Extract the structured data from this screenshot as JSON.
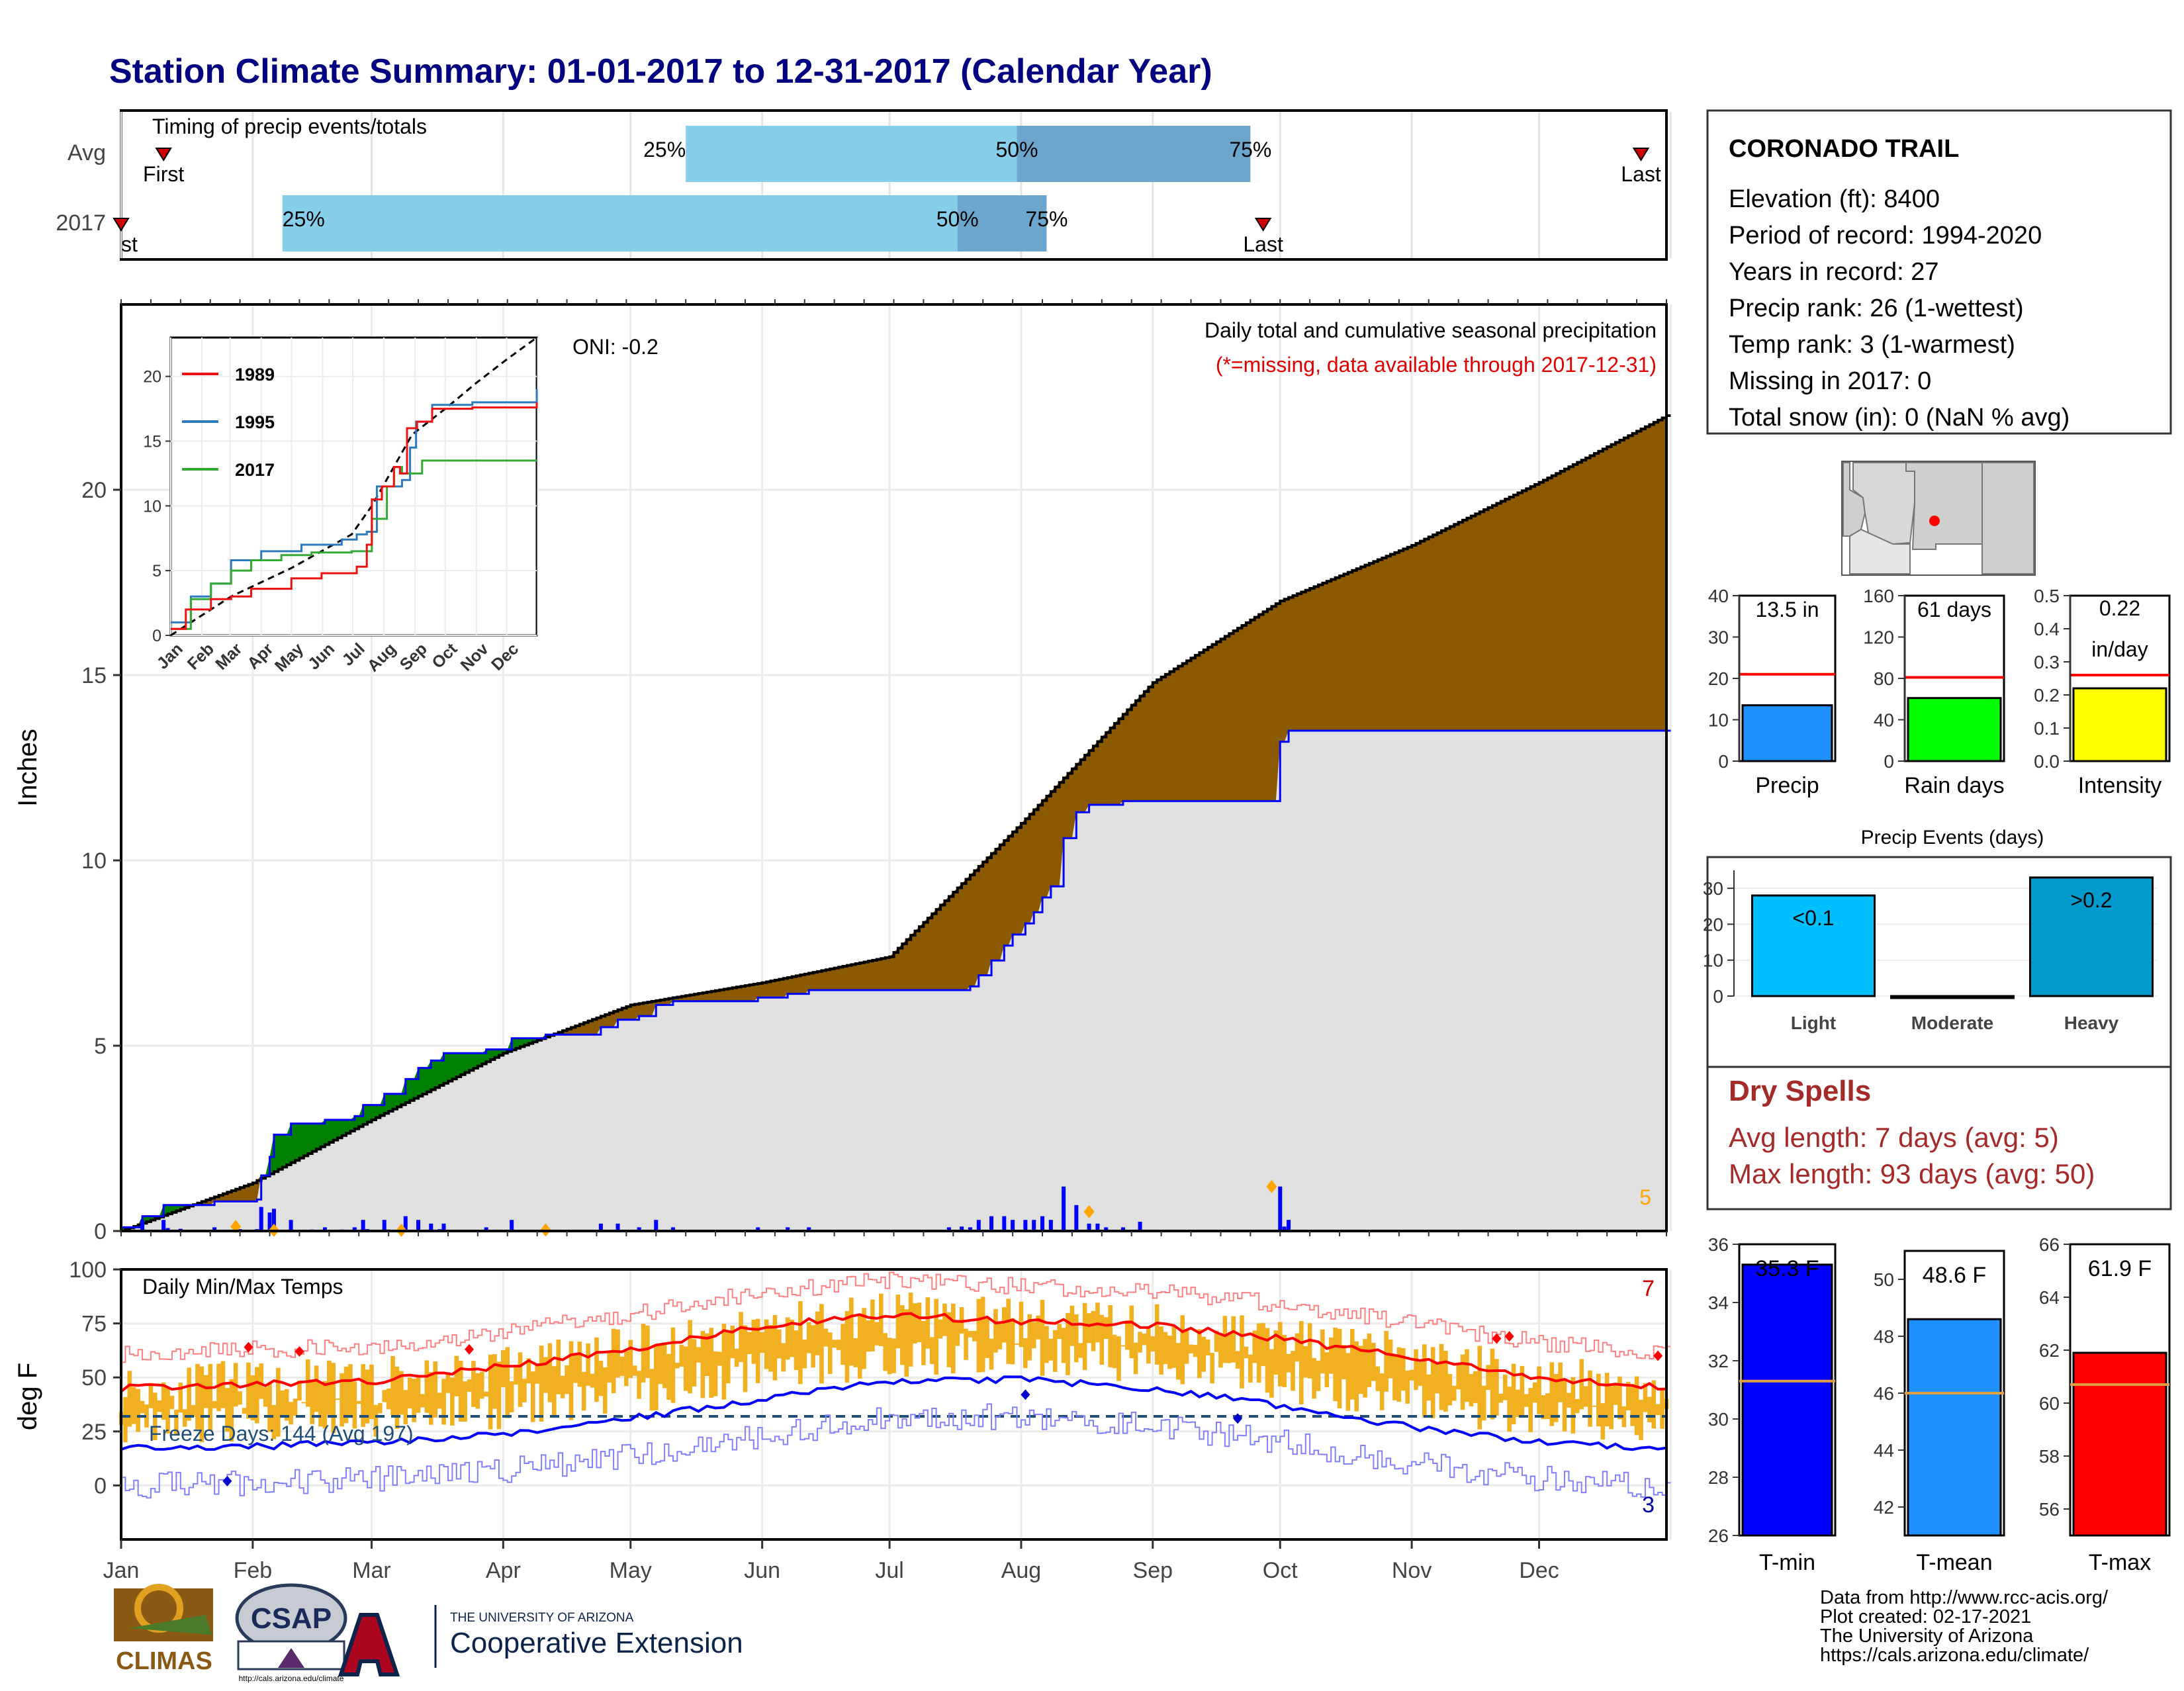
{
  "title": "Station Climate Summary: 01-01-2017 to 12-31-2017 (Calendar Year)",
  "timing": {
    "label": "Timing of precip events/totals",
    "rows": [
      "Avg",
      "2017"
    ],
    "avg": {
      "first": "01-11",
      "last": "12-25",
      "p25": "05-14",
      "p50": "07-31",
      "p75": "09-24"
    },
    "y2017": {
      "first": "01-01",
      "last": "09-27",
      "p25": "02-08",
      "p50": "07-17",
      "p75": "08-07"
    },
    "first_label": "First",
    "first_label_2017": "st",
    "last_label": "Last",
    "p25_label": "25%",
    "p50_label": "50%",
    "p75_label": "75%"
  },
  "months": [
    "Jan",
    "Feb",
    "Mar",
    "Apr",
    "May",
    "Jun",
    "Jul",
    "Aug",
    "Sep",
    "Oct",
    "Nov",
    "Dec"
  ],
  "precip_panel": {
    "ylabel": "Inches",
    "yticks": [
      "0",
      "5",
      "10",
      "15",
      "20"
    ],
    "header": "Daily total and cumulative seasonal precipitation",
    "missing_note": "(*=missing, data available through 2017-12-31)",
    "oni": "ONI: -0.2",
    "count_label": "5",
    "colors": {
      "avg_line": "#000000",
      "obs_line": "#0000ff",
      "above_fill": "#008000",
      "below_fill": "#8b5a00",
      "base_fill": "#e0e0e0",
      "daily_bar": "#0000ff",
      "flag": "#ffa500"
    }
  },
  "inset": {
    "yticks": [
      "0",
      "5",
      "10",
      "15",
      "20"
    ],
    "legend": [
      {
        "name": "1989",
        "color": "#ee1111"
      },
      {
        "name": "1995",
        "color": "#2b7bbe"
      },
      {
        "name": "2017",
        "color": "#33aa33"
      }
    ]
  },
  "info": {
    "station": "CORONADO TRAIL",
    "lines": [
      "Elevation (ft): 8400",
      "Period of record: 1994-2020",
      "Years in record: 27",
      "Precip rank: 26 (1-wettest)",
      "Temp rank: 3 (1-warmest)",
      "Missing in 2017: 0",
      "Total snow (in): 0 (NaN % avg)"
    ]
  },
  "mini_bars": [
    {
      "label": "Precip",
      "value_text": "13.5 in",
      "value": 13.5,
      "avg": 21.0,
      "ymax": 40,
      "ticks": [
        "0",
        "10",
        "20",
        "30",
        "40"
      ],
      "color": "#1e90ff"
    },
    {
      "label": "Rain days",
      "value_text": "61 days",
      "value": 61,
      "avg": 81,
      "ymax": 160,
      "ticks": [
        "0",
        "40",
        "80",
        "120",
        "160"
      ],
      "color": "#00ff00"
    },
    {
      "label": "Intensity",
      "value_text": "0.22",
      "value_text2": "in/day",
      "value": 0.22,
      "avg": 0.26,
      "ymax": 0.5,
      "ticks": [
        "0.0",
        "0.1",
        "0.2",
        "0.3",
        "0.4",
        "0.5"
      ],
      "color": "#ffff00"
    }
  ],
  "precip_events": {
    "title": "Precip Events (days)",
    "categories": [
      "Light",
      "Moderate",
      "Heavy"
    ],
    "values": [
      28,
      0,
      33
    ],
    "bar_labels": [
      "<0.1",
      "",
      ">0.2"
    ],
    "yticks": [
      "0",
      "10",
      "20",
      "30"
    ],
    "colors": [
      "#00bfff",
      "#009acd",
      "#009acd"
    ]
  },
  "dry_spells": {
    "title": "Dry Spells",
    "line1": "Avg length: 7 days (avg: 5)",
    "line2": "Max length: 93 days (avg: 50)"
  },
  "temp_panel": {
    "label": "Daily Min/Max Temps",
    "ylabel": "deg F",
    "yticks": [
      "0",
      "25",
      "50",
      "75",
      "100"
    ],
    "freeze": "Freeze Days: 144 (Avg 197)",
    "count_top": "7",
    "count_bottom": "3",
    "colors": {
      "range_bar": "#f0b020",
      "avg_max": "#ff0000",
      "avg_min": "#0000ff",
      "rec_max": "#ff8080",
      "rec_min": "#8080ff",
      "freeze_line": "#1f4e79"
    }
  },
  "temp_bars": [
    {
      "label": "T-min",
      "value_text": "35.3 F",
      "value": 35.3,
      "avg": 31.3,
      "ymin": 26,
      "ymax": 36,
      "ticks": [
        "26",
        "28",
        "30",
        "32",
        "34",
        "36"
      ],
      "color": "#0000ff"
    },
    {
      "label": "T-mean",
      "value_text": "48.6 F",
      "value": 48.6,
      "avg": 46.0,
      "ymin": 41,
      "ymax": 51,
      "ticks": [
        "42",
        "44",
        "46",
        "48",
        "50"
      ],
      "color": "#1e90ff"
    },
    {
      "label": "T-max",
      "value_text": "61.9 F",
      "value": 61.9,
      "avg": 60.7,
      "ymin": 55,
      "ymax": 66,
      "ticks": [
        "56",
        "58",
        "60",
        "62",
        "64",
        "66"
      ],
      "color": "#ff0000"
    }
  ],
  "footer": {
    "lines": [
      "Data from http://www.rcc-acis.org/",
      "Plot created: 02-17-2021",
      "The University of Arizona",
      "https://cals.arizona.edu/climate/"
    ],
    "logo1": "CLIMAS",
    "logo2": "CSAP",
    "logo2_url": "http://cals.arizona.edu/climate",
    "logo3_small": "THE UNIVERSITY OF ARIZONA",
    "logo3_big": "Cooperative Extension"
  },
  "chart_data": [
    {
      "type": "area",
      "title": "Daily total and cumulative seasonal precipitation",
      "ylabel": "Inches",
      "ylim": [
        0,
        25
      ],
      "series": [
        {
          "name": "",
          "x": [
            "01-01",
            "02-01",
            "03-01",
            "04-01",
            "05-01",
            "06-01",
            "07-01",
            "08-01",
            "09-01",
            "10-01",
            "11-01",
            "12-01",
            "12-31"
          ],
          "values": [
            0.0,
            1.3,
            3.0,
            4.8,
            6.1,
            6.7,
            7.4,
            11.0,
            14.8,
            17.0,
            18.5,
            20.2,
            22.0
          ]
        },
        {
          "name": "",
          "x": [
            "01-01",
            "02-01",
            "03-01",
            "04-01",
            "05-01",
            "06-01",
            "07-01",
            "08-01",
            "09-01",
            "10-01",
            "11-01",
            "12-01",
            "12-31"
          ],
          "values": [
            0.1,
            2.9,
            4.6,
            5.9,
            6.5,
            6.5,
            6.5,
            9.0,
            12.0,
            13.5,
            13.5,
            13.5,
            13.5
          ]
        }
      ]
    },
    {
      "type": "line",
      "title": "Daily Min/Max Temps",
      "ylabel": "deg F",
      "ylim": [
        -25,
        100
      ],
      "series": [
        {
          "name": "",
          "x": [
            "01-01",
            "02-01",
            "03-01",
            "04-01",
            "05-01",
            "06-01",
            "07-01",
            "08-01",
            "09-01",
            "10-01",
            "11-01",
            "12-01",
            "12-31"
          ],
          "values": [
            45,
            47,
            48,
            55,
            63,
            74,
            79,
            76,
            74,
            68,
            59,
            50,
            45
          ]
        },
        {
          "name": "",
          "x": [
            "01-01",
            "02-01",
            "03-01",
            "04-01",
            "05-01",
            "06-01",
            "07-01",
            "08-01",
            "09-01",
            "10-01",
            "11-01",
            "12-01",
            "12-31"
          ],
          "values": [
            17,
            18,
            20,
            24,
            31,
            40,
            48,
            49,
            45,
            37,
            27,
            20,
            17
          ]
        }
      ]
    }
  ]
}
